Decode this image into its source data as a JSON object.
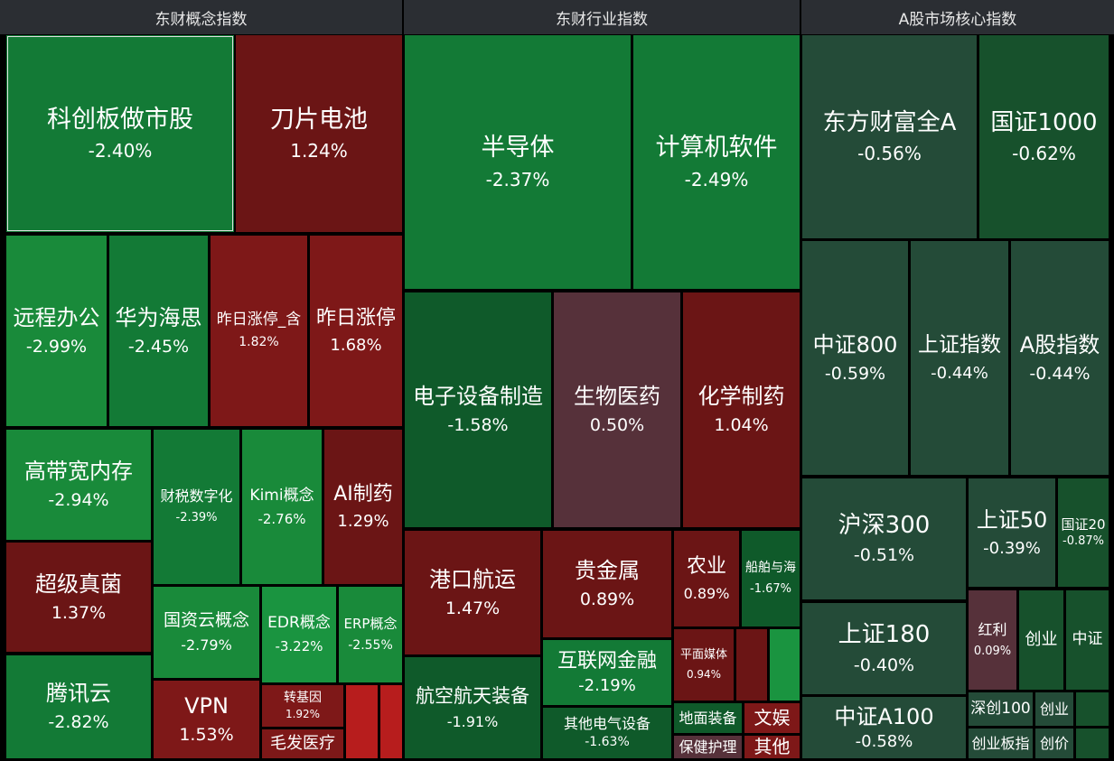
{
  "headers": {
    "concept": "东财概念指数",
    "industry": "东财行业指数",
    "market": "A股市场核心指数"
  },
  "colors": {
    "up_dark": "#6b1515",
    "up": "#7e1818",
    "up_bright": "#b71d1d",
    "flat_up": "#56313a",
    "down_dark": "#0f5a2a",
    "down": "#137a36",
    "down_bright": "#1a9440",
    "index_gray": "#244b38"
  },
  "tiles": {
    "kcbzs": {
      "name": "科创板做市股",
      "pct": "-2.40%"
    },
    "dpdc": {
      "name": "刀片电池",
      "pct": "1.24%"
    },
    "ycbg": {
      "name": "远程办公",
      "pct": "-2.99%"
    },
    "hwhs": {
      "name": "华为海思",
      "pct": "-2.45%"
    },
    "zrztc": {
      "name": "昨日涨停_含",
      "pct": "1.82%"
    },
    "zrzt": {
      "name": "昨日涨停",
      "pct": "1.68%"
    },
    "gdkncc": {
      "name": "高带宽内存",
      "pct": "-2.94%"
    },
    "csszh": {
      "name": "财税数字化",
      "pct": "-2.39%"
    },
    "kimi": {
      "name": "Kimi概念",
      "pct": "-2.76%"
    },
    "aizy": {
      "name": "AI制药",
      "pct": "1.29%"
    },
    "cjzj": {
      "name": "超级真菌",
      "pct": "1.37%"
    },
    "gzyg": {
      "name": "国资云概念",
      "pct": "-2.79%"
    },
    "edr": {
      "name": "EDR概念",
      "pct": "-3.22%"
    },
    "erp": {
      "name": "ERP概念",
      "pct": "-2.55%"
    },
    "txy": {
      "name": "腾讯云",
      "pct": "-2.82%"
    },
    "vpn": {
      "name": "VPN",
      "pct": "1.53%"
    },
    "zjy": {
      "name": "转基因",
      "pct": "1.92%"
    },
    "mfyl": {
      "name": "毛发医疗",
      "pct": ""
    },
    "bdt": {
      "name": "半导体",
      "pct": "-2.37%"
    },
    "jsjrj": {
      "name": "计算机软件",
      "pct": "-2.49%"
    },
    "dzsb": {
      "name": "电子设备制造",
      "pct": "-1.58%"
    },
    "swyy": {
      "name": "生物医药",
      "pct": "0.50%"
    },
    "hxzy": {
      "name": "化学制药",
      "pct": "1.04%"
    },
    "gkhy": {
      "name": "港口航运",
      "pct": "1.47%"
    },
    "gjs": {
      "name": "贵金属",
      "pct": "0.89%"
    },
    "ny": {
      "name": "农业",
      "pct": "0.89%"
    },
    "cbyh": {
      "name": "船舶与海",
      "pct": "-1.67%"
    },
    "pmmt": {
      "name": "平面媒体",
      "pct": "0.94%"
    },
    "hlwjr": {
      "name": "互联网金融",
      "pct": "-2.19%"
    },
    "hkht": {
      "name": "航空航天装备",
      "pct": "-1.91%"
    },
    "qtdq": {
      "name": "其他电气设备",
      "pct": "-1.63%"
    },
    "dmzb": {
      "name": "地面装备",
      "pct": ""
    },
    "wy": {
      "name": "文娱",
      "pct": ""
    },
    "bjhl": {
      "name": "保健护理",
      "pct": ""
    },
    "qt": {
      "name": "其他",
      "pct": ""
    },
    "dfcf": {
      "name": "东方财富全A",
      "pct": "-0.56%"
    },
    "gz1000": {
      "name": "国证1000",
      "pct": "-0.62%"
    },
    "zz800": {
      "name": "中证800",
      "pct": "-0.59%"
    },
    "szzs": {
      "name": "上证指数",
      "pct": "-0.44%"
    },
    "agzs": {
      "name": "A股指数",
      "pct": "-0.44%"
    },
    "hs300": {
      "name": "沪深300",
      "pct": "-0.51%"
    },
    "sz50": {
      "name": "上证50",
      "pct": "-0.39%"
    },
    "gz20": {
      "name": "国证20",
      "pct": "-0.87%"
    },
    "sz180": {
      "name": "上证180",
      "pct": "-0.40%"
    },
    "hl": {
      "name": "红利",
      "pct": "0.09%"
    },
    "cy": {
      "name": "创业",
      "pct": ""
    },
    "zz": {
      "name": "中证",
      "pct": ""
    },
    "zza100": {
      "name": "中证A100",
      "pct": "-0.58%"
    },
    "sc100": {
      "name": "深创100",
      "pct": ""
    },
    "cy2": {
      "name": "创业",
      "pct": ""
    },
    "cybz": {
      "name": "创业板指",
      "pct": ""
    },
    "cj": {
      "name": "创价",
      "pct": ""
    }
  }
}
